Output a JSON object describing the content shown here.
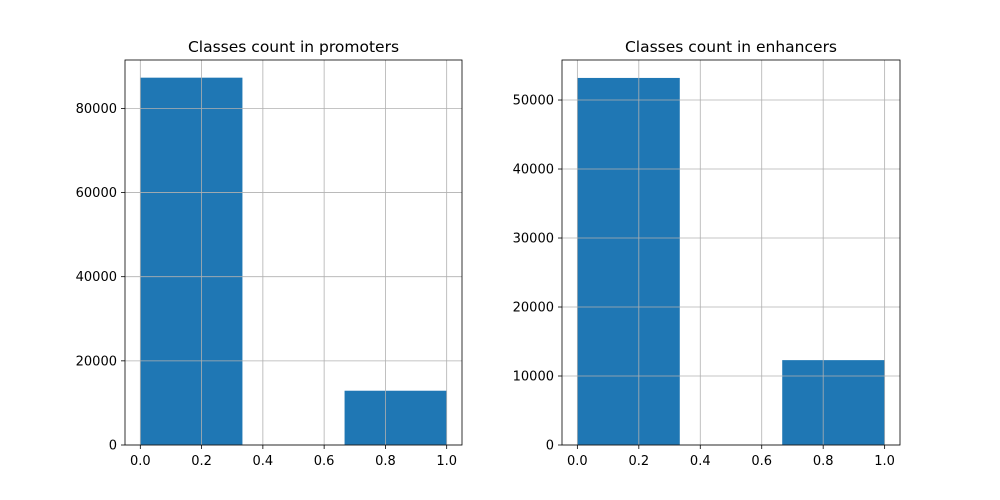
{
  "chart_data": [
    {
      "type": "bar",
      "title": "Classes count in promoters",
      "xlabel": "",
      "ylabel": "",
      "bins": [
        {
          "x0": 0.0,
          "x1": 0.3333,
          "value": 87300
        },
        {
          "x0": 0.3333,
          "x1": 0.6667,
          "value": 0
        },
        {
          "x0": 0.6667,
          "x1": 1.0,
          "value": 12900
        }
      ],
      "xlim": [
        -0.05,
        1.05
      ],
      "ylim": [
        0,
        91500
      ],
      "xticks": [
        0.0,
        0.2,
        0.4,
        0.6,
        0.8,
        1.0
      ],
      "xtick_labels": [
        "0.0",
        "0.2",
        "0.4",
        "0.6",
        "0.8",
        "1.0"
      ],
      "yticks": [
        0,
        20000,
        40000,
        60000,
        80000
      ],
      "ytick_labels": [
        "0",
        "20000",
        "40000",
        "60000",
        "80000"
      ],
      "grid": true,
      "color": "#1f77b4"
    },
    {
      "type": "bar",
      "title": "Classes count in enhancers",
      "xlabel": "",
      "ylabel": "",
      "bins": [
        {
          "x0": 0.0,
          "x1": 0.3333,
          "value": 53200
        },
        {
          "x0": 0.3333,
          "x1": 0.6667,
          "value": 0
        },
        {
          "x0": 0.6667,
          "x1": 1.0,
          "value": 12300
        }
      ],
      "xlim": [
        -0.05,
        1.05
      ],
      "ylim": [
        0,
        55800
      ],
      "xticks": [
        0.0,
        0.2,
        0.4,
        0.6,
        0.8,
        1.0
      ],
      "xtick_labels": [
        "0.0",
        "0.2",
        "0.4",
        "0.6",
        "0.8",
        "1.0"
      ],
      "yticks": [
        0,
        10000,
        20000,
        30000,
        40000,
        50000
      ],
      "ytick_labels": [
        "0",
        "10000",
        "20000",
        "30000",
        "40000",
        "50000"
      ],
      "grid": true,
      "color": "#1f77b4"
    }
  ]
}
